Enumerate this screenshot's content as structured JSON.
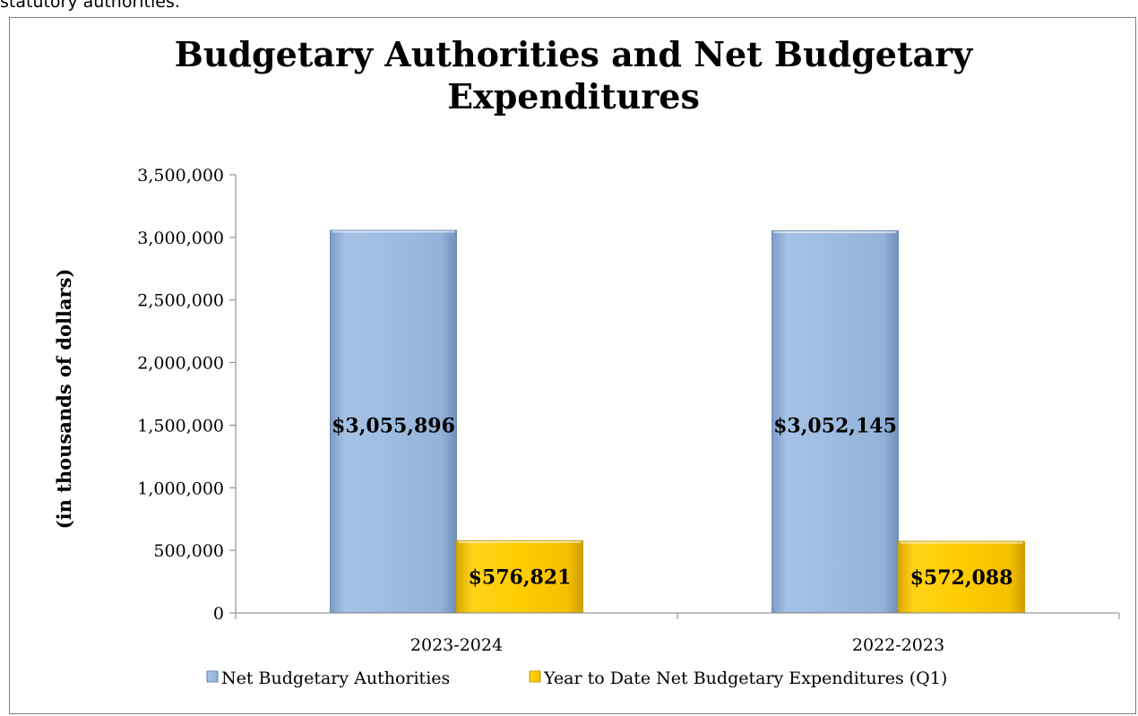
{
  "page": {
    "top_text": "statutory authorities."
  },
  "chart_data": {
    "type": "bar",
    "title_lines": [
      "Budgetary Authorities and Net Budgetary",
      "Expenditures"
    ],
    "ylabel": "(in thousands of dollars)",
    "xlabel": "",
    "categories": [
      "2023-2024",
      "2022-2023"
    ],
    "series": [
      {
        "name": "Net Budgetary Authorities",
        "values": [
          3055896,
          3052145
        ],
        "data_labels": [
          "$3,055,896",
          "$3,052,145"
        ],
        "color": "#9dbbe0"
      },
      {
        "name": "Year to Date Net Budgetary Expenditures (Q1)",
        "values": [
          576821,
          572088
        ],
        "data_labels": [
          "$576,821",
          "$572,088"
        ],
        "color": "#ffcc00"
      }
    ],
    "ylim": [
      0,
      3500000
    ],
    "yticks": [
      0,
      500000,
      1000000,
      1500000,
      2000000,
      2500000,
      3000000,
      3500000
    ],
    "ytick_labels": [
      "0",
      "500,000",
      "1,000,000",
      "1,500,000",
      "2,000,000",
      "2,500,000",
      "3,000,000",
      "3,500,000"
    ],
    "grid": false,
    "legend_position": "bottom"
  }
}
